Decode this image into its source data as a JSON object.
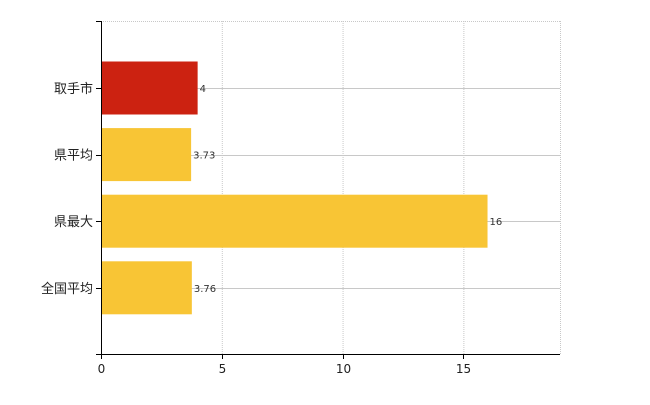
{
  "chart_data": {
    "type": "bar",
    "orientation": "horizontal",
    "categories": [
      "取手市",
      "県平均",
      "県最大",
      "全国平均"
    ],
    "values": [
      4,
      3.73,
      16,
      3.76
    ],
    "data_labels": [
      "4",
      "3.73",
      "16",
      "3.76"
    ],
    "bar_colors": [
      "#cc2211",
      "#f8c535",
      "#f8c535",
      "#f8c535"
    ],
    "xlim": [
      0,
      19
    ],
    "x_ticks": [
      0,
      5,
      10,
      15
    ],
    "x_tick_labels": [
      "0",
      "5",
      "10",
      "15"
    ],
    "grid": true,
    "legend": "none",
    "title": "",
    "xlabel": "",
    "ylabel": ""
  }
}
